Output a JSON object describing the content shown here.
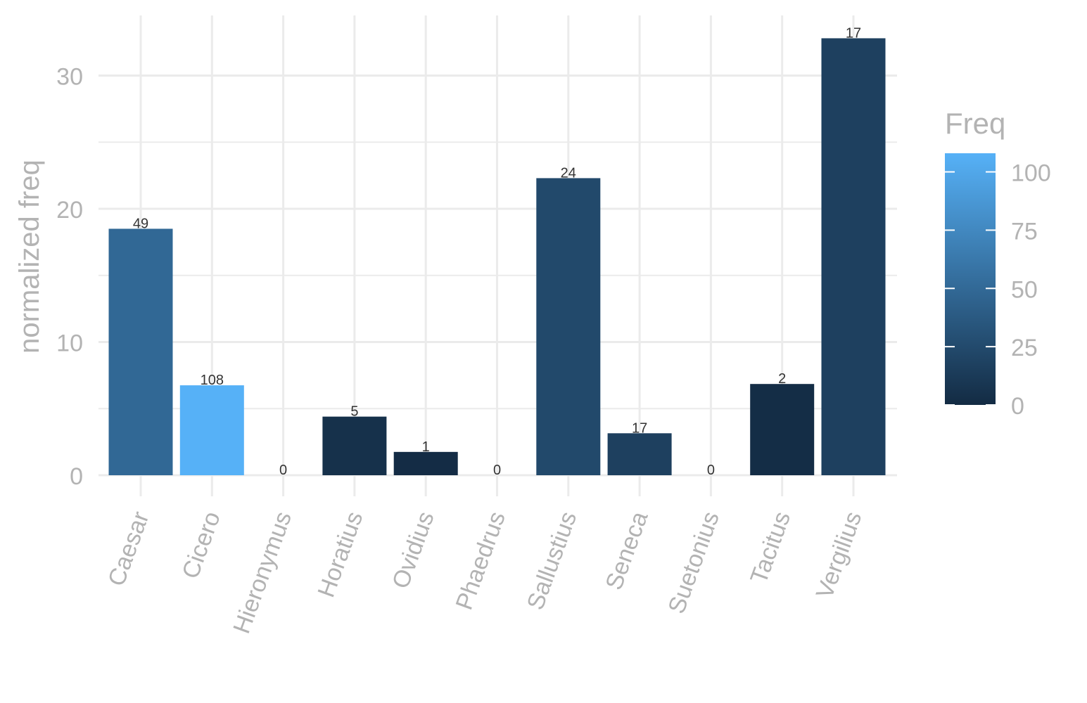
{
  "chart_data": {
    "type": "bar",
    "ylabel": "normalized freq",
    "ylim": [
      0,
      34
    ],
    "yticks": [
      0,
      10,
      20,
      30
    ],
    "categories": [
      "Caesar",
      "Cicero",
      "Hieronymus",
      "Horatius",
      "Ovidius",
      "Phaedrus",
      "Sallustius",
      "Seneca",
      "Suetonius",
      "Tacitus",
      "Vergilius"
    ],
    "values": [
      18.5,
      6.75,
      0,
      4.4,
      1.75,
      0,
      22.3,
      3.15,
      0,
      6.85,
      32.8
    ],
    "freq": [
      49,
      108,
      0,
      5,
      1,
      0,
      24,
      17,
      0,
      2,
      17
    ],
    "bar_labels": [
      "49",
      "108",
      "0",
      "5",
      "1",
      "0",
      "24",
      "17",
      "0",
      "2",
      "17"
    ],
    "legend": {
      "title": "Freq",
      "position": "right",
      "min": 0,
      "max": 108,
      "ticks": [
        0,
        25,
        50,
        75,
        100
      ],
      "tick_labels": [
        "0",
        "25",
        "50",
        "75",
        "100"
      ],
      "low_color": "#132b43",
      "high_color": "#56b1f7"
    },
    "grid": true
  }
}
